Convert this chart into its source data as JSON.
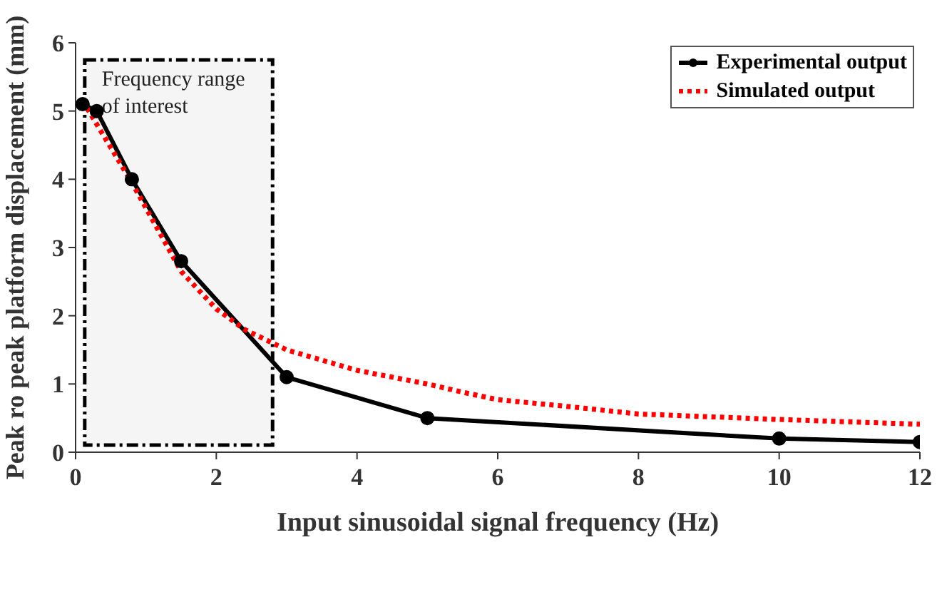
{
  "chart_data": {
    "type": "line",
    "xlabel": "Input sinusoidal signal frequency (Hz)",
    "ylabel": "Peak ro peak platform displacement (mm)",
    "xlim": [
      0,
      12
    ],
    "xticks": [
      0,
      2,
      4,
      6,
      8,
      10,
      12
    ],
    "ylim": [
      0,
      6
    ],
    "yticks": [
      0,
      1,
      2,
      3,
      4,
      5,
      6
    ],
    "grid": false,
    "legend": "top right",
    "series": [
      {
        "name": "Experimental output",
        "color": "#000000",
        "marker": "circle",
        "line_style": "solid",
        "x": [
          0.1,
          0.3,
          0.8,
          1.5,
          3,
          5,
          10,
          12
        ],
        "values": [
          5.1,
          5.0,
          4.0,
          2.8,
          1.1,
          0.5,
          0.2,
          0.15
        ]
      },
      {
        "name": "Simulated output",
        "color": "#ff0000",
        "marker": "none",
        "line_style": "dotted",
        "x": [
          0.1,
          0.8,
          1.5,
          2,
          2.4,
          2.8,
          3,
          4,
          5,
          5.5,
          6,
          7,
          8,
          10,
          12
        ],
        "values": [
          5.15,
          3.95,
          2.65,
          2.1,
          1.8,
          1.6,
          1.5,
          1.2,
          1.0,
          0.88,
          0.77,
          0.67,
          0.56,
          0.48,
          0.41
        ]
      }
    ],
    "bands": [
      {
        "axis": "x",
        "from": 0.13,
        "to": 2.8,
        "label": "Frequency range\nof interest",
        "color": "#f5f5f5"
      }
    ]
  }
}
